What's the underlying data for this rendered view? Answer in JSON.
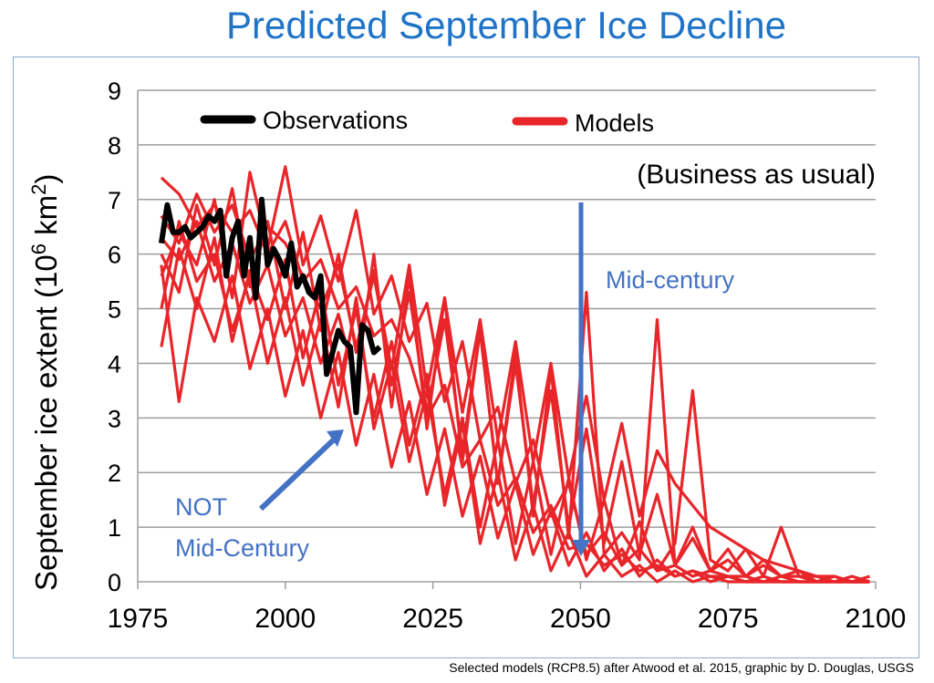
{
  "title": "Predicted September Ice Decline",
  "credit": "Selected models (RCP8.5) after Atwood et al. 2015, graphic by D. Douglas, USGS",
  "colors": {
    "title": "#1f74c8",
    "models": "#e8262a",
    "observations": "#000000",
    "annotation": "#4472c4",
    "grid": "#9e9e9e"
  },
  "chart_data": {
    "type": "line",
    "title": "Predicted September Ice Decline",
    "xlabel": "",
    "ylabel_text": "September ice extent  (10",
    "ylabel_sup": "6",
    "ylabel_tail": " km",
    "ylabel_sup2": "2",
    "ylabel_close": ")",
    "xlim": [
      1975,
      2100
    ],
    "ylim": [
      0,
      9
    ],
    "xticks": [
      1975,
      2000,
      2025,
      2050,
      2075,
      2100
    ],
    "yticks": [
      0,
      1,
      2,
      3,
      4,
      5,
      6,
      7,
      8,
      9
    ],
    "grid": "horizontal",
    "legend": [
      {
        "label": "Observations",
        "color": "#000000"
      },
      {
        "label": "Models",
        "color": "#e8262a"
      }
    ],
    "annotations": {
      "scenario": "(Business as usual)",
      "mid_century": "Mid-century",
      "not_mid_line1": "NOT",
      "not_mid_line2": "Mid-Century"
    },
    "observations": {
      "name": "Observations",
      "x": [
        1979,
        1980,
        1981,
        1982,
        1983,
        1984,
        1985,
        1986,
        1987,
        1988,
        1989,
        1990,
        1991,
        1992,
        1993,
        1994,
        1995,
        1996,
        1997,
        1998,
        1999,
        2000,
        2001,
        2002,
        2003,
        2004,
        2005,
        2006,
        2007,
        2008,
        2009,
        2010,
        2011,
        2012,
        2013,
        2014,
        2015,
        2016
      ],
      "y": [
        6.2,
        6.9,
        6.4,
        6.4,
        6.5,
        6.3,
        6.4,
        6.5,
        6.7,
        6.6,
        6.8,
        5.6,
        6.3,
        6.6,
        5.6,
        6.3,
        5.2,
        7.0,
        5.8,
        6.1,
        5.9,
        5.6,
        6.2,
        5.4,
        5.6,
        5.3,
        5.2,
        5.6,
        3.8,
        4.2,
        4.6,
        4.4,
        4.3,
        3.1,
        4.7,
        4.6,
        4.2,
        4.3
      ]
    },
    "series": [
      {
        "name": "",
        "x": [
          1979,
          1982,
          1985,
          1988,
          1991,
          1994,
          1997,
          2000,
          2003,
          2006,
          2009,
          2012,
          2015,
          2018,
          2021,
          2024,
          2027,
          2030,
          2033,
          2036,
          2039,
          2042,
          2045,
          2048,
          2051,
          2054,
          2057,
          2060,
          2063,
          2066,
          2069,
          2072,
          2075,
          2078,
          2081,
          2084,
          2087,
          2090,
          2093,
          2096,
          2099
        ],
        "y": [
          7.4,
          7.1,
          6.5,
          6.9,
          6.4,
          6.8,
          6.0,
          6.6,
          5.5,
          5.9,
          5.0,
          5.4,
          4.5,
          4.8,
          4.1,
          3.0,
          3.6,
          2.1,
          2.6,
          1.4,
          1.9,
          0.9,
          1.4,
          0.6,
          0.7,
          0.3,
          0.5,
          0.2,
          0.3,
          0.1,
          0.2,
          0.1,
          0.1,
          0.0,
          0.1,
          0.0,
          0.0,
          0.0,
          0.0,
          0.0,
          0.0
        ]
      },
      {
        "name": "",
        "x": [
          1979,
          1982,
          1985,
          1988,
          1991,
          1994,
          1997,
          2000,
          2003,
          2006,
          2009,
          2012,
          2015,
          2018,
          2021,
          2024,
          2027,
          2030,
          2033,
          2036,
          2039,
          2042,
          2045,
          2048,
          2051,
          2054,
          2057,
          2060,
          2063,
          2066,
          2069,
          2072,
          2075,
          2078,
          2081,
          2084,
          2087,
          2090,
          2093,
          2096,
          2099
        ],
        "y": [
          5.6,
          6.4,
          5.8,
          7.0,
          5.2,
          7.5,
          6.1,
          7.6,
          5.8,
          6.7,
          5.5,
          6.8,
          4.9,
          5.6,
          4.4,
          5.1,
          3.3,
          4.4,
          2.6,
          3.2,
          1.8,
          2.6,
          1.2,
          1.8,
          0.5,
          0.9,
          0.3,
          0.6,
          0.2,
          0.3,
          0.1,
          0.2,
          0.1,
          0.1,
          0.0,
          0.1,
          0.0,
          0.0,
          0.0,
          0.0,
          0.0
        ]
      },
      {
        "name": "",
        "x": [
          1979,
          1982,
          1985,
          1988,
          1991,
          1994,
          1997,
          2000,
          2003,
          2006,
          2009,
          2012,
          2015,
          2018,
          2021,
          2024,
          2027,
          2030,
          2033,
          2036,
          2039,
          2042,
          2045,
          2048,
          2051,
          2054,
          2057,
          2060,
          2063,
          2066,
          2069,
          2072,
          2075,
          2078,
          2081,
          2084,
          2087,
          2090,
          2093,
          2096,
          2099
        ],
        "y": [
          4.3,
          6.1,
          5.0,
          6.3,
          4.4,
          5.7,
          4.8,
          5.9,
          4.1,
          5.4,
          3.6,
          5.0,
          3.0,
          4.4,
          2.5,
          3.8,
          1.4,
          2.9,
          0.7,
          2.0,
          0.4,
          1.4,
          0.2,
          0.9,
          0.1,
          0.5,
          0.1,
          0.3,
          0.0,
          0.2,
          0.0,
          0.1,
          0.0,
          0.0,
          0.0,
          0.0,
          0.0,
          0.0,
          0.0,
          0.0,
          0.0
        ]
      },
      {
        "name": "",
        "x": [
          1979,
          1982,
          1985,
          1988,
          1991,
          1994,
          1997,
          2000,
          2003,
          2006,
          2009,
          2012,
          2015,
          2018,
          2021,
          2024,
          2027,
          2030,
          2033,
          2036,
          2039,
          2042,
          2045,
          2048,
          2051,
          2054,
          2057,
          2060,
          2063,
          2066,
          2069,
          2072,
          2075,
          2078,
          2081,
          2084,
          2087,
          2090,
          2093,
          2096,
          2099
        ],
        "y": [
          6.0,
          5.3,
          6.9,
          5.8,
          7.2,
          5.4,
          6.6,
          5.0,
          6.4,
          4.6,
          6.0,
          4.2,
          5.7,
          3.6,
          5.3,
          3.1,
          4.8,
          2.4,
          4.6,
          1.8,
          4.2,
          1.2,
          3.9,
          0.8,
          5.3,
          0.5,
          0.9,
          0.4,
          4.8,
          0.3,
          0.8,
          0.2,
          0.4,
          0.1,
          0.3,
          0.1,
          0.1,
          0.0,
          0.1,
          0.0,
          0.0
        ]
      },
      {
        "name": "",
        "x": [
          1979,
          1982,
          1985,
          1988,
          1991,
          1994,
          1997,
          2000,
          2003,
          2006,
          2009,
          2012,
          2015,
          2018,
          2021,
          2024,
          2027,
          2030,
          2033,
          2036,
          2039,
          2042,
          2045,
          2048,
          2051,
          2054,
          2057,
          2060,
          2063,
          2066,
          2069,
          2072,
          2075,
          2078,
          2081,
          2084,
          2087,
          2090,
          2093,
          2096,
          2099
        ],
        "y": [
          5.0,
          6.6,
          5.5,
          6.0,
          4.6,
          5.6,
          4.0,
          5.2,
          3.6,
          4.8,
          3.2,
          5.2,
          2.8,
          4.0,
          2.2,
          3.5,
          1.6,
          3.0,
          1.0,
          2.6,
          0.7,
          2.2,
          0.5,
          1.9,
          0.4,
          1.5,
          0.3,
          1.1,
          0.2,
          0.7,
          3.5,
          0.4,
          0.2,
          0.6,
          0.1,
          1.0,
          0.1,
          0.1,
          0.0,
          0.1,
          0.0
        ]
      },
      {
        "name": "",
        "x": [
          1979,
          1982,
          1985,
          1988,
          1991,
          1994,
          1997,
          2000,
          2003,
          2006,
          2009,
          2012,
          2015,
          2018,
          2021,
          2024,
          2027,
          2030,
          2033,
          2036,
          2039,
          2042,
          2045,
          2048,
          2051,
          2054,
          2057,
          2060,
          2063,
          2066,
          2069,
          2072,
          2075,
          2078,
          2081,
          2084,
          2087,
          2090,
          2093,
          2096,
          2099
        ],
        "y": [
          6.3,
          5.9,
          6.6,
          5.5,
          6.2,
          5.1,
          5.8,
          4.5,
          5.2,
          4.0,
          4.9,
          3.6,
          6.0,
          3.2,
          5.6,
          2.8,
          5.2,
          2.2,
          4.6,
          1.8,
          4.0,
          1.4,
          3.5,
          1.0,
          2.8,
          0.7,
          2.2,
          0.5,
          1.6,
          0.3,
          1.0,
          0.2,
          0.6,
          0.1,
          0.4,
          0.1,
          0.2,
          0.0,
          0.1,
          0.0,
          0.1
        ]
      },
      {
        "name": "",
        "x": [
          1979,
          1982,
          1985,
          1988,
          1991,
          1994,
          1997,
          2000,
          2003,
          2006,
          2009,
          2012,
          2015,
          2018,
          2021,
          2024,
          2027,
          2030,
          2033,
          2036,
          2039,
          2042,
          2045,
          2048,
          2051,
          2054,
          2057,
          2060,
          2063,
          2066,
          2069,
          2072,
          2075,
          2078,
          2081,
          2084,
          2087,
          2090,
          2093,
          2096,
          2099
        ],
        "y": [
          5.8,
          3.3,
          5.2,
          4.4,
          5.6,
          3.9,
          5.0,
          3.4,
          4.6,
          3.0,
          4.2,
          2.5,
          3.8,
          2.1,
          3.3,
          1.6,
          2.8,
          1.2,
          2.3,
          0.8,
          1.8,
          0.5,
          1.3,
          0.3,
          0.9,
          0.2,
          0.6,
          0.1,
          0.4,
          0.1,
          0.2,
          0.0,
          0.1,
          0.0,
          0.0,
          0.0,
          0.0,
          0.0,
          0.0,
          0.0,
          0.0
        ]
      },
      {
        "name": "",
        "x": [
          1979,
          1982,
          1985,
          1988,
          1991,
          1994,
          1997,
          2000,
          2003,
          2006,
          2009,
          2012,
          2015,
          2018,
          2021,
          2024,
          2027,
          2030,
          2033,
          2036,
          2039,
          2042,
          2045,
          2048,
          2051,
          2054,
          2057,
          2060,
          2063,
          2066,
          2069,
          2072,
          2075,
          2078,
          2081,
          2084,
          2087,
          2090,
          2093,
          2096,
          2099
        ],
        "y": [
          6.7,
          6.2,
          7.1,
          6.4,
          6.9,
          5.9,
          6.5,
          6.2,
          5.6,
          5.0,
          5.8,
          4.3,
          5.6,
          3.9,
          5.8,
          3.5,
          5.2,
          3.1,
          4.8,
          2.6,
          4.4,
          2.2,
          4.0,
          1.9,
          3.4,
          1.5,
          2.9,
          1.2,
          2.4,
          1.8,
          1.4,
          1.0,
          0.8,
          0.6,
          0.4,
          0.3,
          0.2,
          0.1,
          0.1,
          0.0,
          0.0
        ]
      }
    ]
  }
}
